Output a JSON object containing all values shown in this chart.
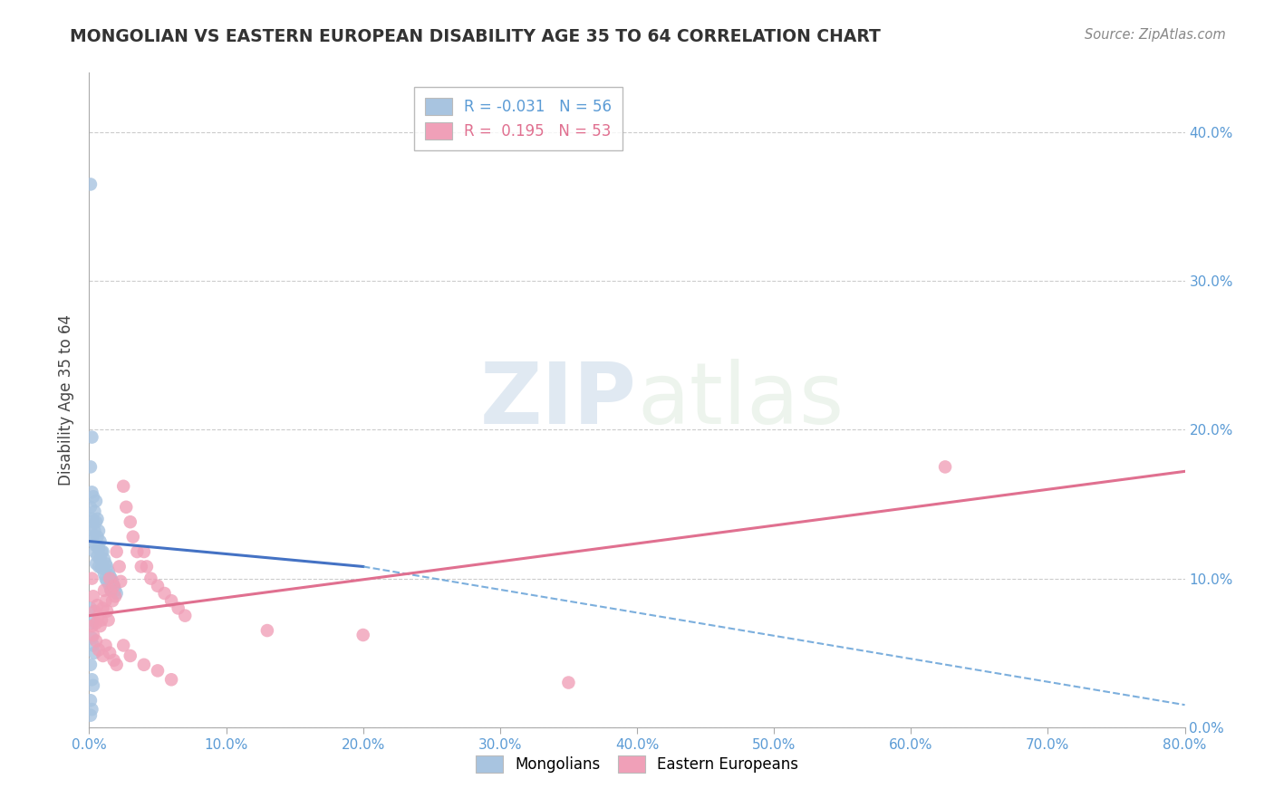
{
  "title": "MONGOLIAN VS EASTERN EUROPEAN DISABILITY AGE 35 TO 64 CORRELATION CHART",
  "source": "Source: ZipAtlas.com",
  "xmin": 0.0,
  "xmax": 0.8,
  "ymin": 0.0,
  "ymax": 0.44,
  "mongolian_R": "-0.031",
  "mongolian_N": "56",
  "eastern_R": "0.195",
  "eastern_N": "53",
  "mongolian_color": "#a8c4e0",
  "eastern_color": "#f0a0b8",
  "mongolian_line_color": "#5b9bd5",
  "mongolian_line_color_solid": "#4472c4",
  "eastern_line_color": "#e07090",
  "mongolian_scatter": [
    [
      0.001,
      0.365
    ],
    [
      0.002,
      0.195
    ],
    [
      0.001,
      0.175
    ],
    [
      0.002,
      0.158
    ],
    [
      0.001,
      0.148
    ],
    [
      0.002,
      0.14
    ],
    [
      0.001,
      0.133
    ],
    [
      0.002,
      0.128
    ],
    [
      0.003,
      0.155
    ],
    [
      0.003,
      0.138
    ],
    [
      0.003,
      0.125
    ],
    [
      0.004,
      0.145
    ],
    [
      0.004,
      0.132
    ],
    [
      0.004,
      0.118
    ],
    [
      0.005,
      0.152
    ],
    [
      0.005,
      0.138
    ],
    [
      0.005,
      0.122
    ],
    [
      0.005,
      0.11
    ],
    [
      0.006,
      0.14
    ],
    [
      0.006,
      0.128
    ],
    [
      0.006,
      0.115
    ],
    [
      0.007,
      0.132
    ],
    [
      0.007,
      0.12
    ],
    [
      0.007,
      0.108
    ],
    [
      0.008,
      0.125
    ],
    [
      0.008,
      0.113
    ],
    [
      0.009,
      0.118
    ],
    [
      0.009,
      0.107
    ],
    [
      0.01,
      0.118
    ],
    [
      0.01,
      0.108
    ],
    [
      0.011,
      0.113
    ],
    [
      0.011,
      0.103
    ],
    [
      0.012,
      0.11
    ],
    [
      0.012,
      0.1
    ],
    [
      0.013,
      0.108
    ],
    [
      0.013,
      0.098
    ],
    [
      0.014,
      0.105
    ],
    [
      0.015,
      0.102
    ],
    [
      0.015,
      0.095
    ],
    [
      0.016,
      0.1
    ],
    [
      0.016,
      0.092
    ],
    [
      0.017,
      0.098
    ],
    [
      0.018,
      0.095
    ],
    [
      0.019,
      0.092
    ],
    [
      0.02,
      0.09
    ],
    [
      0.001,
      0.08
    ],
    [
      0.002,
      0.07
    ],
    [
      0.002,
      0.06
    ],
    [
      0.003,
      0.055
    ],
    [
      0.004,
      0.05
    ],
    [
      0.001,
      0.042
    ],
    [
      0.002,
      0.032
    ],
    [
      0.003,
      0.028
    ],
    [
      0.001,
      0.018
    ],
    [
      0.001,
      0.008
    ],
    [
      0.002,
      0.012
    ]
  ],
  "eastern_scatter": [
    [
      0.002,
      0.1
    ],
    [
      0.003,
      0.088
    ],
    [
      0.004,
      0.078
    ],
    [
      0.005,
      0.07
    ],
    [
      0.006,
      0.082
    ],
    [
      0.007,
      0.075
    ],
    [
      0.008,
      0.068
    ],
    [
      0.009,
      0.072
    ],
    [
      0.01,
      0.08
    ],
    [
      0.011,
      0.092
    ],
    [
      0.012,
      0.085
    ],
    [
      0.013,
      0.078
    ],
    [
      0.014,
      0.072
    ],
    [
      0.015,
      0.1
    ],
    [
      0.016,
      0.092
    ],
    [
      0.017,
      0.085
    ],
    [
      0.018,
      0.095
    ],
    [
      0.019,
      0.088
    ],
    [
      0.02,
      0.118
    ],
    [
      0.022,
      0.108
    ],
    [
      0.023,
      0.098
    ],
    [
      0.025,
      0.162
    ],
    [
      0.027,
      0.148
    ],
    [
      0.03,
      0.138
    ],
    [
      0.032,
      0.128
    ],
    [
      0.035,
      0.118
    ],
    [
      0.038,
      0.108
    ],
    [
      0.04,
      0.118
    ],
    [
      0.042,
      0.108
    ],
    [
      0.045,
      0.1
    ],
    [
      0.05,
      0.095
    ],
    [
      0.055,
      0.09
    ],
    [
      0.06,
      0.085
    ],
    [
      0.065,
      0.08
    ],
    [
      0.07,
      0.075
    ],
    [
      0.002,
      0.068
    ],
    [
      0.003,
      0.062
    ],
    [
      0.005,
      0.058
    ],
    [
      0.007,
      0.052
    ],
    [
      0.01,
      0.048
    ],
    [
      0.012,
      0.055
    ],
    [
      0.015,
      0.05
    ],
    [
      0.018,
      0.045
    ],
    [
      0.02,
      0.042
    ],
    [
      0.025,
      0.055
    ],
    [
      0.03,
      0.048
    ],
    [
      0.04,
      0.042
    ],
    [
      0.05,
      0.038
    ],
    [
      0.06,
      0.032
    ],
    [
      0.625,
      0.175
    ],
    [
      0.13,
      0.065
    ],
    [
      0.2,
      0.062
    ],
    [
      0.35,
      0.03
    ]
  ],
  "watermark_zip": "ZIP",
  "watermark_atlas": "atlas",
  "background_color": "#ffffff",
  "grid_color": "#cccccc",
  "tick_color": "#5b9bd5"
}
